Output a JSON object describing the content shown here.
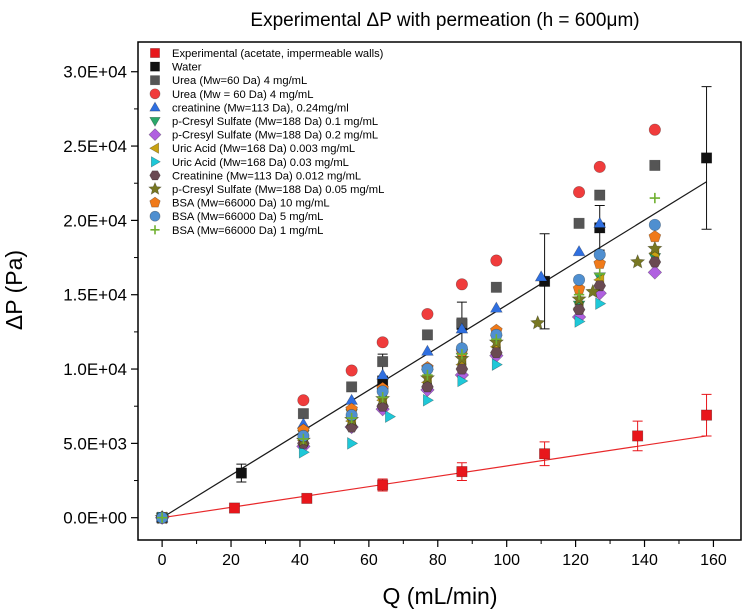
{
  "chart_data": {
    "type": "scatter",
    "title": "Experimental ΔP with permeation (h = 600μm)",
    "xlabel": "Q (mL/min)",
    "ylabel": "ΔP (Pa)",
    "xlim": [
      -7,
      168
    ],
    "ylim": [
      -1500,
      32000
    ],
    "xticks": [
      0,
      20,
      40,
      60,
      80,
      100,
      120,
      140,
      160
    ],
    "xtick_labels": [
      "0",
      "20",
      "40",
      "60",
      "80",
      "100",
      "120",
      "140",
      "160"
    ],
    "yticks": [
      0,
      5000,
      10000,
      15000,
      20000,
      25000,
      30000
    ],
    "ytick_labels": [
      "0.0E+00",
      "5.0E+03",
      "1.0E+04",
      "1.5E+04",
      "2.0E+04",
      "2.5E+04",
      "3.0E+04"
    ],
    "grid": false,
    "legend_position": "top-left",
    "fit_lines": [
      {
        "series": "Experimental (acetate, impermeable walls)",
        "x": [
          0,
          158
        ],
        "y": [
          0,
          5500
        ],
        "color": "#e8282a"
      },
      {
        "series": "Water",
        "x": [
          0,
          158
        ],
        "y": [
          0,
          22600
        ],
        "color": "#1a1a1a"
      }
    ],
    "series": [
      {
        "name": "Experimental (acetate, impermeable walls)",
        "marker": "square",
        "color": "#e8161b",
        "x": [
          0,
          21,
          42,
          64,
          87,
          111,
          138,
          158
        ],
        "y": [
          0,
          650,
          1300,
          2200,
          3100,
          4300,
          5500,
          6900
        ],
        "err": [
          0,
          0,
          0,
          400,
          600,
          800,
          1000,
          1400
        ]
      },
      {
        "name": "Water",
        "marker": "square",
        "color": "#111111",
        "x": [
          0,
          23,
          64,
          87,
          111,
          127,
          158
        ],
        "y": [
          0,
          3000,
          9200,
          13000,
          15900,
          19500,
          24200
        ],
        "err": [
          0,
          600,
          1800,
          1500,
          3200,
          1500,
          4800
        ]
      },
      {
        "name": "Urea (Mw=60 Da) 4 mg/mL",
        "marker": "square",
        "color": "#555555",
        "x": [
          0,
          41,
          55,
          64,
          77,
          87,
          97,
          121,
          127,
          143
        ],
        "y": [
          0,
          7000,
          8800,
          10500,
          12300,
          13100,
          15500,
          19800,
          21700,
          23700
        ]
      },
      {
        "name": "Urea (Mw = 60 Da) 4 mg/mL",
        "marker": "circle",
        "color": "#f03c3c",
        "x": [
          0,
          41,
          55,
          64,
          77,
          87,
          97,
          121,
          127,
          143
        ],
        "y": [
          0,
          7900,
          9900,
          11800,
          13700,
          15700,
          17300,
          21900,
          23600,
          26100
        ]
      },
      {
        "name": "creatinine (Mw=113 Da), 0.24mg/ml",
        "marker": "triangle-up",
        "color": "#2f6fe0",
        "x": [
          0,
          41,
          55,
          64,
          77,
          87,
          97,
          110,
          121,
          127
        ],
        "y": [
          0,
          6300,
          7900,
          9600,
          11200,
          12700,
          14100,
          16200,
          17900,
          19800
        ]
      },
      {
        "name": "p-Cresyl Sulfate (Mw=188 Da) 0.1 mg/mL",
        "marker": "triangle-down",
        "color": "#2aa86a",
        "x": [
          0,
          41,
          55,
          64,
          77,
          87,
          97,
          121,
          127,
          143
        ],
        "y": [
          0,
          5600,
          7000,
          8400,
          9700,
          10800,
          12000,
          14300,
          16200,
          17500
        ]
      },
      {
        "name": "p-Cresyl Sulfate (Mw=188 Da) 0.2 mg/mL",
        "marker": "diamond",
        "color": "#b060e0",
        "x": [
          0,
          41,
          55,
          64,
          77,
          87,
          97,
          121,
          127,
          143
        ],
        "y": [
          0,
          4800,
          6100,
          7300,
          8600,
          9600,
          10900,
          13500,
          15100,
          16500
        ]
      },
      {
        "name": "Uric Acid (Mw=168 Da) 0.003 mg/mL",
        "marker": "triangle-left",
        "color": "#c9a212",
        "x": [
          0,
          41,
          55,
          64,
          77,
          87,
          97,
          121,
          127,
          143
        ],
        "y": [
          0,
          5200,
          6500,
          7900,
          9100,
          10300,
          11500,
          14100,
          16000,
          17800
        ]
      },
      {
        "name": "Uric Acid (Mw=168 Da) 0.03 mg/mL",
        "marker": "triangle-right",
        "color": "#1ec8d8",
        "x": [
          0,
          41,
          55,
          66,
          77,
          87,
          97,
          121,
          127
        ],
        "y": [
          0,
          4400,
          5000,
          6800,
          7900,
          9200,
          10300,
          13200,
          14400
        ]
      },
      {
        "name": "Creatinine (Mw=113 Da) 0.012 mg/mL",
        "marker": "hexagon",
        "color": "#6a4a52",
        "x": [
          0,
          41,
          55,
          64,
          77,
          87,
          97,
          121,
          127,
          143
        ],
        "y": [
          0,
          5000,
          6100,
          7500,
          8800,
          10000,
          11100,
          14000,
          15600,
          17200
        ]
      },
      {
        "name": "p-Cresyl Sulfate (Mw=188 Da) 0.05 mg/mL",
        "marker": "star",
        "color": "#777722",
        "x": [
          0,
          41,
          55,
          64,
          77,
          87,
          97,
          109,
          121,
          125,
          138,
          143
        ],
        "y": [
          0,
          5200,
          6600,
          8000,
          9400,
          10700,
          11800,
          13100,
          14700,
          15200,
          17200,
          18100
        ]
      },
      {
        "name": "BSA (Mw=66000 Da) 10 mg/mL",
        "marker": "pentagon",
        "color": "#f07a1a",
        "x": [
          0,
          41,
          55,
          64,
          77,
          87,
          97,
          121,
          127,
          143
        ],
        "y": [
          0,
          5900,
          7300,
          8700,
          10100,
          11200,
          12600,
          15400,
          17100,
          18900
        ]
      },
      {
        "name": "BSA (Mw=66000 Da) 5 mg/mL",
        "marker": "circle",
        "color": "#4f8fd0",
        "x": [
          0,
          41,
          55,
          64,
          77,
          87,
          97,
          121,
          127,
          143
        ],
        "y": [
          0,
          5500,
          6900,
          8500,
          10000,
          11400,
          12300,
          16000,
          17700,
          19700
        ]
      },
      {
        "name": "BSA (Mw=66000 Da) 1 mg/mL",
        "marker": "plus",
        "color": "#70b030",
        "x": [
          0,
          41,
          55,
          64,
          77,
          87,
          97,
          121,
          127,
          143
        ],
        "y": [
          0,
          5300,
          6700,
          8100,
          9600,
          11000,
          12000,
          15000,
          16400,
          21500
        ]
      }
    ]
  }
}
